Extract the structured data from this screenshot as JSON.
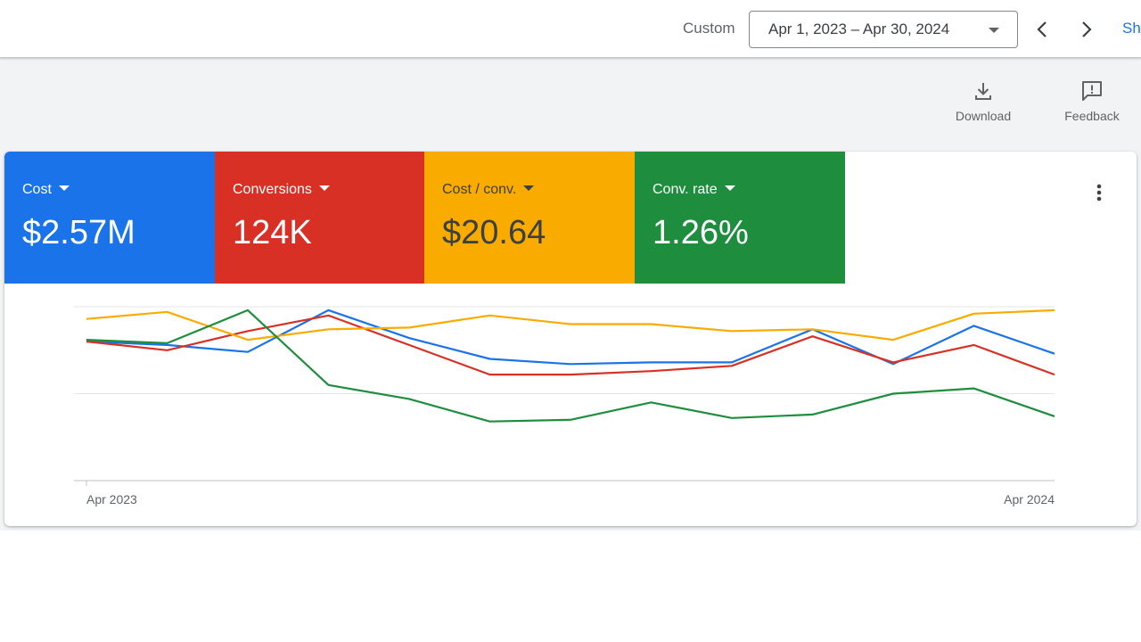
{
  "topbar": {
    "range_type": "Custom",
    "date_range": "Apr 1, 2023 – Apr 30, 2024",
    "show_link": "Sh"
  },
  "actions": {
    "download_label": "Download",
    "feedback_label": "Feedback"
  },
  "metrics": [
    {
      "name": "Cost",
      "value": "$2.57M",
      "color": "#1a73e8",
      "text_color": "#ffffff"
    },
    {
      "name": "Conversions",
      "value": "124K",
      "color": "#d93025",
      "text_color": "#ffffff"
    },
    {
      "name": "Cost / conv.",
      "value": "$20.64",
      "color": "#f9ab00",
      "text_color": "#3c4043"
    },
    {
      "name": "Conv. rate",
      "value": "1.26%",
      "color": "#1e8e3e",
      "text_color": "#ffffff"
    }
  ],
  "chart_data": {
    "type": "line",
    "x": [
      "Apr 2023",
      "May 2023",
      "Jun 2023",
      "Jul 2023",
      "Aug 2023",
      "Sep 2023",
      "Oct 2023",
      "Nov 2023",
      "Dec 2023",
      "Jan 2024",
      "Feb 2024",
      "Mar 2024",
      "Apr 2024"
    ],
    "x_tick_labels": [
      "Apr 2023",
      "Apr 2024"
    ],
    "grid": true,
    "legend": "none",
    "y_axis_labels": "none",
    "relative_scale": "each series normalized; 0 = bottom axis, 100 = top gridline",
    "series": [
      {
        "name": "Cost",
        "color": "#1a73e8",
        "values": [
          80,
          78,
          74,
          98,
          82,
          70,
          67,
          68,
          68,
          87,
          67,
          89,
          73
        ]
      },
      {
        "name": "Conversions",
        "color": "#d93025",
        "values": [
          80,
          75,
          86,
          95,
          78,
          61,
          61,
          63,
          66,
          83,
          68,
          78,
          61
        ]
      },
      {
        "name": "Cost / conv.",
        "color": "#f9ab00",
        "values": [
          93,
          97,
          81,
          87,
          88,
          95,
          90,
          90,
          86,
          87,
          81,
          96,
          98
        ]
      },
      {
        "name": "Conv. rate",
        "color": "#1e8e3e",
        "values": [
          81,
          79,
          98,
          55,
          47,
          34,
          35,
          45,
          36,
          38,
          50,
          53,
          37
        ]
      }
    ]
  }
}
